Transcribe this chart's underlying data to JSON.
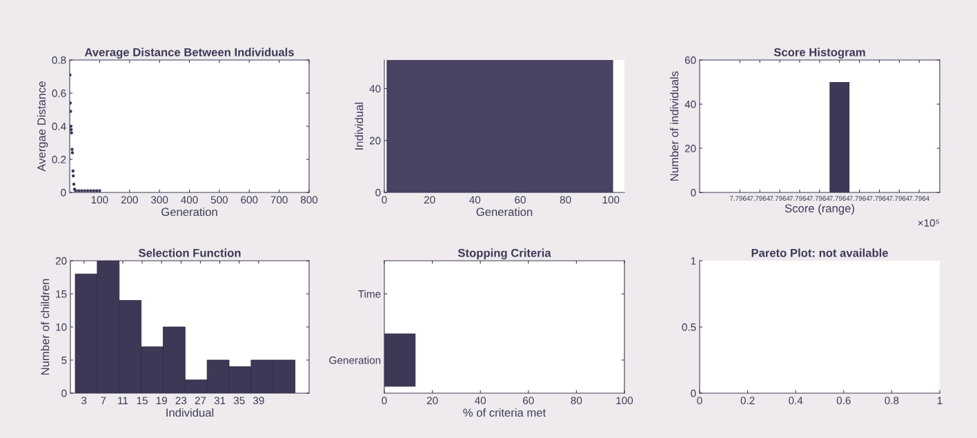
{
  "chart_data": [
    {
      "type": "scatter",
      "title": "Average Distance Between Individuals",
      "xlabel": "Generation",
      "ylabel": "Avergae Distance",
      "marker": "circle",
      "color": "#3f3756",
      "x": [
        1,
        2,
        3,
        4,
        5,
        6,
        8,
        9,
        11,
        12,
        14,
        16,
        20,
        30,
        40,
        50,
        60,
        70,
        80,
        90,
        100
      ],
      "values": [
        0.71,
        0.54,
        0.49,
        0.4,
        0.38,
        0.36,
        0.26,
        0.24,
        0.13,
        0.1,
        0.05,
        0.02,
        0.01,
        0.01,
        0.01,
        0.01,
        0.01,
        0.01,
        0.01,
        0.01,
        0.01
      ],
      "xlim": [
        0,
        800
      ],
      "xticks": [
        100,
        200,
        300,
        400,
        500,
        600,
        700,
        800
      ],
      "ylim": [
        0,
        0.8
      ],
      "yticks": [
        0,
        0.2,
        0.4,
        0.6,
        0.8
      ],
      "grid": false
    },
    {
      "type": "scatter",
      "xlabel": "Generation",
      "ylabel": "Individual",
      "bands": [
        {
          "axis": "x",
          "from": 1,
          "to": 101,
          "color": "#4a4262"
        }
      ],
      "xlim": [
        0,
        106
      ],
      "xticks": [
        0,
        20,
        40,
        60,
        80,
        100
      ],
      "ylim": [
        0,
        51
      ],
      "yticks": [
        0,
        20,
        40
      ],
      "grid": false
    },
    {
      "type": "bar",
      "title": "Score Histogram",
      "xlabel": "Score (range)",
      "ylabel": "Number of individuals",
      "color": "#3f3756",
      "categories": [
        "7.7964",
        "7.7964",
        "7.7964",
        "7.7964",
        "7.7964",
        "7.7964",
        "7.7964",
        "7.7964",
        "7.7964",
        "7.7964"
      ],
      "values": [
        0,
        0,
        0,
        0,
        0,
        50,
        0,
        0,
        0,
        0
      ],
      "annotations": [
        "×10⁵"
      ],
      "ylim": [
        0,
        60
      ],
      "yticks": [
        0,
        20,
        40,
        60
      ],
      "grid": false
    },
    {
      "type": "histogram",
      "title": "Selection Function",
      "xlabel": "Individual",
      "ylabel": "Number of children",
      "color": "#3f3756",
      "bins": [
        1.2,
        5.73,
        10.26,
        14.79,
        19.32,
        23.85,
        28.38,
        32.91,
        37.44,
        41.97,
        46.5
      ],
      "values": [
        18,
        20,
        14,
        7,
        10,
        2,
        5,
        4,
        5,
        5
      ],
      "xlim": [
        0.2,
        49.4
      ],
      "xticks": [
        3,
        7,
        11,
        15,
        19,
        23,
        27,
        31,
        35,
        39
      ],
      "ylim": [
        0,
        20
      ],
      "yticks": [
        0,
        5,
        10,
        15,
        20
      ],
      "grid": false
    },
    {
      "type": "bar",
      "orientation": "horizontal",
      "title": "Stopping Criteria",
      "xlabel": "% of criteria met",
      "color": "#3f3756",
      "categories": [
        "Time",
        "Generation"
      ],
      "values": [
        0,
        13
      ],
      "xlim": [
        0,
        100
      ],
      "xticks": [
        0,
        20,
        40,
        60,
        80,
        100
      ],
      "grid": false
    },
    {
      "type": "scatter",
      "title": "Pareto Plot: not available",
      "color": "#3f3756",
      "xlim": [
        0,
        1
      ],
      "xticks": [
        0,
        0.2,
        0.4,
        0.6,
        0.8,
        1
      ],
      "ylim": [
        0,
        1
      ],
      "yticks": [
        0,
        0.5,
        1
      ],
      "grid": false
    }
  ]
}
